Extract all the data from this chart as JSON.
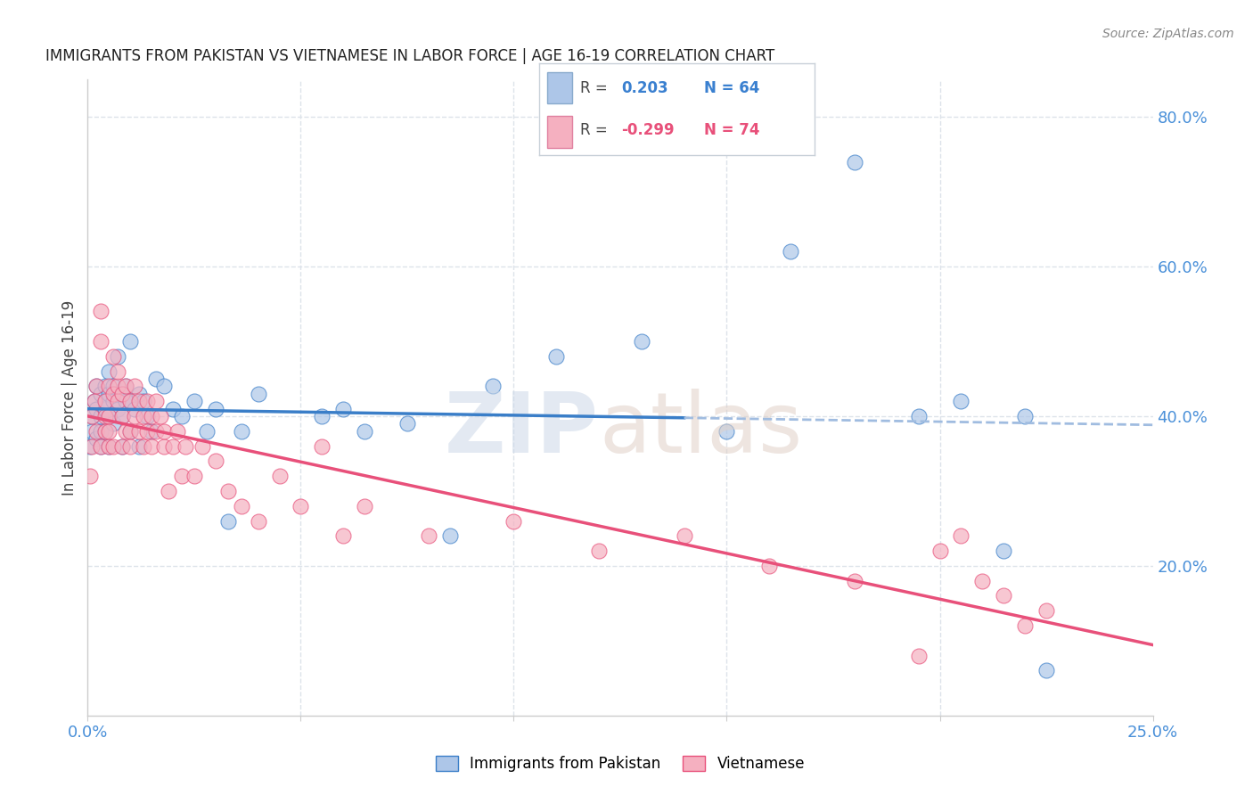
{
  "title": "IMMIGRANTS FROM PAKISTAN VS VIETNAMESE IN LABOR FORCE | AGE 16-19 CORRELATION CHART",
  "source": "Source: ZipAtlas.com",
  "legend_pakistan": "Immigrants from Pakistan",
  "legend_vietnamese": "Vietnamese",
  "r_pakistan": 0.203,
  "n_pakistan": 64,
  "r_vietnamese": -0.299,
  "n_vietnamese": 74,
  "color_pakistan": "#adc6e8",
  "color_vietnamese": "#f5b0c0",
  "trendline_pakistan_solid": "#3a7ec8",
  "trendline_pakistan_dashed": "#a0bce0",
  "trendline_vietnamese": "#e8507a",
  "ylabel": "In Labor Force | Age 16-19",
  "xlim": [
    0.0,
    0.25
  ],
  "ylim": [
    0.0,
    0.85
  ],
  "yticks": [
    0.2,
    0.4,
    0.6,
    0.8
  ],
  "background_color": "#ffffff",
  "grid_color": "#dde3ea",
  "pakistan_x": [
    0.0005,
    0.001,
    0.001,
    0.0015,
    0.002,
    0.002,
    0.002,
    0.003,
    0.003,
    0.003,
    0.003,
    0.004,
    0.004,
    0.004,
    0.004,
    0.005,
    0.005,
    0.005,
    0.005,
    0.006,
    0.006,
    0.006,
    0.007,
    0.007,
    0.008,
    0.008,
    0.008,
    0.009,
    0.009,
    0.01,
    0.01,
    0.01,
    0.011,
    0.012,
    0.012,
    0.013,
    0.014,
    0.015,
    0.016,
    0.018,
    0.02,
    0.022,
    0.025,
    0.028,
    0.03,
    0.033,
    0.036,
    0.04,
    0.055,
    0.06,
    0.065,
    0.075,
    0.085,
    0.095,
    0.11,
    0.13,
    0.15,
    0.165,
    0.18,
    0.195,
    0.205,
    0.215,
    0.22,
    0.225
  ],
  "pakistan_y": [
    0.36,
    0.4,
    0.38,
    0.42,
    0.41,
    0.37,
    0.44,
    0.43,
    0.38,
    0.4,
    0.36,
    0.44,
    0.41,
    0.38,
    0.42,
    0.43,
    0.4,
    0.36,
    0.46,
    0.42,
    0.39,
    0.44,
    0.41,
    0.48,
    0.43,
    0.4,
    0.36,
    0.42,
    0.44,
    0.42,
    0.38,
    0.5,
    0.41,
    0.36,
    0.43,
    0.42,
    0.4,
    0.38,
    0.45,
    0.44,
    0.41,
    0.4,
    0.42,
    0.38,
    0.41,
    0.26,
    0.38,
    0.43,
    0.4,
    0.41,
    0.38,
    0.39,
    0.24,
    0.44,
    0.48,
    0.5,
    0.38,
    0.62,
    0.74,
    0.4,
    0.42,
    0.22,
    0.4,
    0.06
  ],
  "vietnamese_x": [
    0.0005,
    0.001,
    0.001,
    0.0015,
    0.002,
    0.002,
    0.003,
    0.003,
    0.003,
    0.004,
    0.004,
    0.004,
    0.005,
    0.005,
    0.005,
    0.005,
    0.006,
    0.006,
    0.006,
    0.007,
    0.007,
    0.007,
    0.008,
    0.008,
    0.008,
    0.009,
    0.009,
    0.01,
    0.01,
    0.01,
    0.011,
    0.011,
    0.012,
    0.012,
    0.013,
    0.013,
    0.014,
    0.014,
    0.015,
    0.015,
    0.016,
    0.016,
    0.017,
    0.018,
    0.018,
    0.019,
    0.02,
    0.021,
    0.022,
    0.023,
    0.025,
    0.027,
    0.03,
    0.033,
    0.036,
    0.04,
    0.045,
    0.05,
    0.055,
    0.06,
    0.065,
    0.08,
    0.1,
    0.12,
    0.14,
    0.16,
    0.18,
    0.195,
    0.2,
    0.205,
    0.21,
    0.215,
    0.22,
    0.225
  ],
  "vietnamese_y": [
    0.32,
    0.4,
    0.36,
    0.42,
    0.38,
    0.44,
    0.5,
    0.36,
    0.54,
    0.4,
    0.38,
    0.42,
    0.4,
    0.36,
    0.44,
    0.38,
    0.43,
    0.36,
    0.48,
    0.42,
    0.44,
    0.46,
    0.4,
    0.36,
    0.43,
    0.38,
    0.44,
    0.42,
    0.38,
    0.36,
    0.44,
    0.4,
    0.38,
    0.42,
    0.4,
    0.36,
    0.38,
    0.42,
    0.4,
    0.36,
    0.38,
    0.42,
    0.4,
    0.36,
    0.38,
    0.3,
    0.36,
    0.38,
    0.32,
    0.36,
    0.32,
    0.36,
    0.34,
    0.3,
    0.28,
    0.26,
    0.32,
    0.28,
    0.36,
    0.24,
    0.28,
    0.24,
    0.26,
    0.22,
    0.24,
    0.2,
    0.18,
    0.08,
    0.22,
    0.24,
    0.18,
    0.16,
    0.12,
    0.14
  ]
}
